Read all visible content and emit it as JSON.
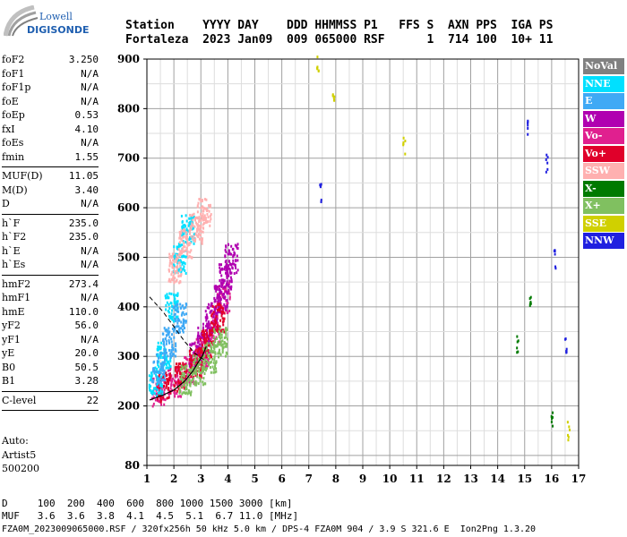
{
  "logo": {
    "line1": "Lowell",
    "line2": "DIGISONDE"
  },
  "header": {
    "line1": "Station    YYYY DAY    DDD HHMMSS P1   FFS S  AXN PPS  IGA PS",
    "line2": "Fortaleza  2023 Jan09  009 065000 RSF      1  714 100  10+ 11"
  },
  "params": [
    {
      "label": "foF2",
      "value": "3.250"
    },
    {
      "label": "foF1",
      "value": "N/A"
    },
    {
      "label": "foF1p",
      "value": "N/A"
    },
    {
      "label": "foE",
      "value": "N/A"
    },
    {
      "label": "foEp",
      "value": "0.53"
    },
    {
      "label": "fxI",
      "value": "4.10"
    },
    {
      "label": "foEs",
      "value": "N/A"
    },
    {
      "label": "fmin",
      "value": "1.55"
    },
    {
      "sep": true
    },
    {
      "label": "MUF(D)",
      "value": "11.05"
    },
    {
      "label": "M(D)",
      "value": "3.40"
    },
    {
      "label": "D",
      "value": "N/A"
    },
    {
      "sep": true
    },
    {
      "label": "h`F",
      "value": "235.0"
    },
    {
      "label": "h`F2",
      "value": "235.0"
    },
    {
      "label": "h`E",
      "value": "N/A"
    },
    {
      "label": "h`Es",
      "value": "N/A"
    },
    {
      "sep": true
    },
    {
      "label": "hmF2",
      "value": "273.4"
    },
    {
      "label": "hmF1",
      "value": "N/A"
    },
    {
      "label": "hmE",
      "value": "110.0"
    },
    {
      "label": "yF2",
      "value": "56.0"
    },
    {
      "label": "yF1",
      "value": "N/A"
    },
    {
      "label": "yE",
      "value": "20.0"
    },
    {
      "label": "B0",
      "value": "50.5"
    },
    {
      "label": "B1",
      "value": "3.28"
    },
    {
      "sep": true
    },
    {
      "label": "C-level",
      "value": "22"
    },
    {
      "sep": true
    }
  ],
  "auto": {
    "line1": "Auto:",
    "line2": "Artist5",
    "line3": "500200"
  },
  "legend": [
    {
      "label": "NoVal",
      "color": "#808080"
    },
    {
      "label": "NNE",
      "color": "#00e0ff"
    },
    {
      "label": "E",
      "color": "#3fa9f5"
    },
    {
      "label": "W",
      "color": "#b000b0"
    },
    {
      "label": "Vo-",
      "color": "#e0208f"
    },
    {
      "label": "Vo+",
      "color": "#e0002a"
    },
    {
      "label": "SSW",
      "color": "#ffb0b0"
    },
    {
      "label": "X-",
      "color": "#007a00"
    },
    {
      "label": "X+",
      "color": "#80c060"
    },
    {
      "label": "SSE",
      "color": "#d0d000"
    },
    {
      "label": "NNW",
      "color": "#2020e0"
    }
  ],
  "footer": {
    "line1": "D     100  200  400  600  800 1000 1500 3000 [km]",
    "line2": "MUF   3.6  3.6  3.8  4.1  4.5  5.1  6.7 11.0 [MHz]",
    "line3": "FZA0M_2023009065000.RSF / 320fx256h 50 kHz 5.0 km / DPS-4 FZA0M 904 / 3.9 S 321.6 E  Ion2Png 1.3.20"
  },
  "chart_data": {
    "type": "scatter",
    "xlim": [
      1,
      17
    ],
    "ylim": [
      80,
      900
    ],
    "x_ticks": [
      1,
      2,
      3,
      4,
      5,
      6,
      7,
      8,
      9,
      10,
      11,
      12,
      13,
      14,
      15,
      16,
      17
    ],
    "y_ticks": [
      80,
      200,
      300,
      400,
      500,
      600,
      700,
      800,
      900
    ],
    "grid": true,
    "legend_position": "right",
    "trace_profile": {
      "x": [
        1.1,
        1.6,
        2.0,
        2.4,
        2.7,
        2.9,
        3.05,
        3.2
      ],
      "y": [
        212,
        222,
        232,
        250,
        270,
        288,
        300,
        320
      ]
    },
    "trace_dashed": {
      "x": [
        1.1,
        1.6,
        2.0,
        2.4,
        2.8,
        3.2
      ],
      "y": [
        420,
        390,
        360,
        330,
        305,
        290
      ]
    },
    "clusters": [
      {
        "color": "#e0208f",
        "x": [
          1.4,
          2.0,
          2.5,
          3.0,
          3.4,
          3.8
        ],
        "y": [
          232,
          250,
          275,
          310,
          360,
          420
        ]
      },
      {
        "color": "#b000b0",
        "x": [
          2.8,
          3.1,
          3.4,
          3.7,
          3.9,
          4.1
        ],
        "y": [
          300,
          340,
          380,
          420,
          460,
          500
        ]
      },
      {
        "color": "#e0002a",
        "x": [
          1.6,
          2.2,
          2.8,
          3.2,
          3.6
        ],
        "y": [
          240,
          260,
          290,
          330,
          380
        ]
      },
      {
        "color": "#00e0ff",
        "x": [
          1.3,
          1.6,
          1.9,
          2.2,
          2.5
        ],
        "y": [
          250,
          300,
          400,
          500,
          560
        ]
      },
      {
        "color": "#3fa9f5",
        "x": [
          1.4,
          1.8,
          2.2
        ],
        "y": [
          280,
          330,
          380
        ]
      },
      {
        "color": "#80c060",
        "x": [
          2.4,
          2.9,
          3.3,
          3.7
        ],
        "y": [
          255,
          275,
          300,
          330
        ]
      },
      {
        "color": "#ffb0b0",
        "x": [
          2.0,
          2.4,
          2.8,
          3.1
        ],
        "y": [
          480,
          530,
          560,
          590
        ]
      },
      {
        "color": "#2020e0",
        "x": [
          7.4,
          15.1,
          15.8,
          16.1,
          16.5
        ],
        "y": [
          630,
          760,
          690,
          500,
          330
        ]
      },
      {
        "color": "#d0d000",
        "x": [
          7.3,
          7.9,
          10.5,
          16.6
        ],
        "y": [
          890,
          820,
          730,
          150
        ]
      },
      {
        "color": "#007a00",
        "x": [
          14.7,
          15.2,
          16.0
        ],
        "y": [
          330,
          420,
          180
        ]
      }
    ]
  }
}
